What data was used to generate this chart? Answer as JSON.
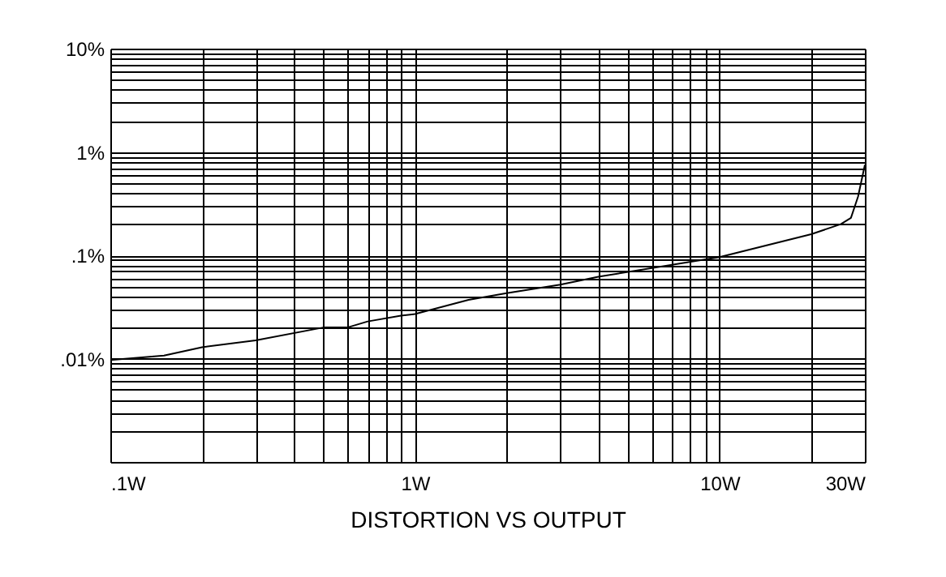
{
  "chart_data": {
    "type": "line",
    "xlabel": "DISTORTION VS OUTPUT",
    "log": "xy",
    "grid": true,
    "marker": "none",
    "line_style": "solid",
    "xlim": [
      0.1,
      30
    ],
    "ylim": [
      0.001,
      10
    ],
    "xticks": [
      {
        "value": 0.1,
        "label": ".1W"
      },
      {
        "value": 0.2,
        "label": null
      },
      {
        "value": 0.3,
        "label": null
      },
      {
        "value": 0.4,
        "label": null
      },
      {
        "value": 0.5,
        "label": null
      },
      {
        "value": 0.6,
        "label": null
      },
      {
        "value": 0.7,
        "label": null
      },
      {
        "value": 0.8,
        "label": null
      },
      {
        "value": 0.9,
        "label": null
      },
      {
        "value": 1,
        "label": "1W"
      },
      {
        "value": 2,
        "label": null
      },
      {
        "value": 3,
        "label": null
      },
      {
        "value": 4,
        "label": null
      },
      {
        "value": 5,
        "label": null
      },
      {
        "value": 6,
        "label": null
      },
      {
        "value": 7,
        "label": null
      },
      {
        "value": 8,
        "label": null
      },
      {
        "value": 9,
        "label": null
      },
      {
        "value": 10,
        "label": "10W"
      },
      {
        "value": 20,
        "label": null
      },
      {
        "value": 30,
        "label": "30W"
      }
    ],
    "yticks": [
      {
        "value": 0.001,
        "label": null
      },
      {
        "value": 0.002,
        "label": null
      },
      {
        "value": 0.003,
        "label": null
      },
      {
        "value": 0.004,
        "label": null
      },
      {
        "value": 0.005,
        "label": null
      },
      {
        "value": 0.006,
        "label": null
      },
      {
        "value": 0.007,
        "label": null
      },
      {
        "value": 0.008,
        "label": null
      },
      {
        "value": 0.009,
        "label": null
      },
      {
        "value": 0.01,
        "label": ".01%"
      },
      {
        "value": 0.02,
        "label": null
      },
      {
        "value": 0.03,
        "label": null
      },
      {
        "value": 0.04,
        "label": null
      },
      {
        "value": 0.05,
        "label": null
      },
      {
        "value": 0.06,
        "label": null
      },
      {
        "value": 0.07,
        "label": null
      },
      {
        "value": 0.08,
        "label": null
      },
      {
        "value": 0.09,
        "label": null
      },
      {
        "value": 0.1,
        "label": ".1%"
      },
      {
        "value": 0.2,
        "label": null
      },
      {
        "value": 0.3,
        "label": null
      },
      {
        "value": 0.4,
        "label": null
      },
      {
        "value": 0.5,
        "label": null
      },
      {
        "value": 0.6,
        "label": null
      },
      {
        "value": 0.7,
        "label": null
      },
      {
        "value": 0.8,
        "label": null
      },
      {
        "value": 0.9,
        "label": null
      },
      {
        "value": 1,
        "label": "1%"
      },
      {
        "value": 2,
        "label": null
      },
      {
        "value": 3,
        "label": null
      },
      {
        "value": 4,
        "label": null
      },
      {
        "value": 5,
        "label": null
      },
      {
        "value": 6,
        "label": null
      },
      {
        "value": 7,
        "label": null
      },
      {
        "value": 8,
        "label": null
      },
      {
        "value": 9,
        "label": null
      },
      {
        "value": 10,
        "label": "10%"
      }
    ],
    "x": [
      0.1,
      0.15,
      0.2,
      0.3,
      0.5,
      0.6,
      0.7,
      0.9,
      1,
      1.5,
      2,
      3,
      4,
      10,
      20,
      25,
      27,
      28.5,
      30
    ],
    "series": [
      {
        "color": "#000000",
        "values": [
          0.0097,
          0.0107,
          0.0129,
          0.015,
          0.02,
          0.02,
          0.0229,
          0.026,
          0.027,
          0.037,
          0.043,
          0.052,
          0.062,
          0.096,
          0.16,
          0.2,
          0.23,
          0.37,
          0.75
        ]
      }
    ]
  }
}
